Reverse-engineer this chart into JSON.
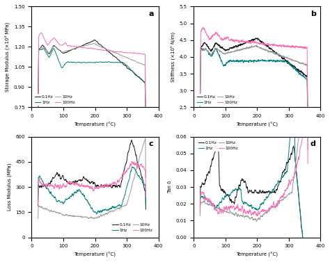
{
  "title_a": "a",
  "title_b": "b",
  "title_c": "c",
  "title_d": "d",
  "xlabel": "Temperature (°C)",
  "ylabel_a": "Storage Modulus (×10⁴ MPa)",
  "ylabel_b": "Stiffness (×10⁵ N/m)",
  "ylabel_c": "Loss Modulus (MPa)",
  "ylabel_d": "Tan δ",
  "xlim": [
    0,
    400
  ],
  "ylim_a": [
    0.75,
    1.5
  ],
  "ylim_b": [
    2.5,
    5.5
  ],
  "ylim_c": [
    0,
    600
  ],
  "ylim_d": [
    0.0,
    0.06
  ],
  "colors": {
    "0.1Hz": "#1a1a1a",
    "1Hz": "#008080",
    "10Hz": "#999999",
    "100Hz": "#ff69b4"
  },
  "xticks": [
    0,
    100,
    200,
    300,
    400
  ],
  "yticks_a": [
    0.75,
    0.9,
    1.05,
    1.2,
    1.35,
    1.5
  ],
  "yticks_b": [
    2.5,
    3.0,
    3.5,
    4.0,
    4.5,
    5.0,
    5.5
  ],
  "yticks_c": [
    0,
    150,
    300,
    450,
    600
  ],
  "yticks_d": [
    0.0,
    0.01,
    0.02,
    0.03,
    0.04,
    0.05,
    0.06
  ]
}
